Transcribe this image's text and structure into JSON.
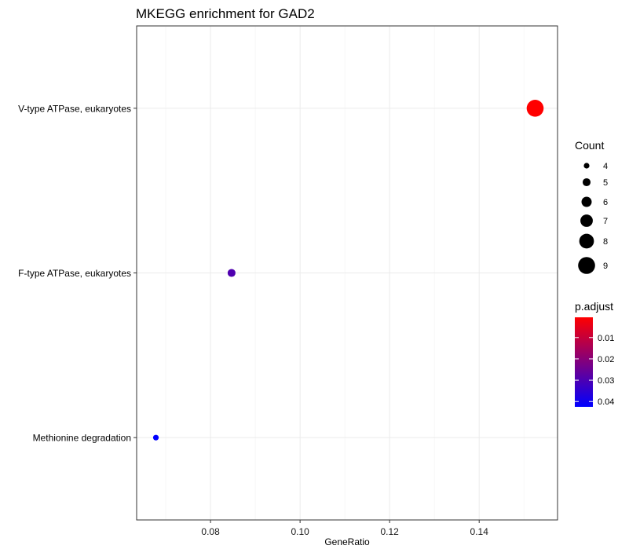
{
  "chart_data": {
    "type": "scatter",
    "title": "MKEGG enrichment for GAD2",
    "xlabel": "GeneRatio",
    "ylabel": "",
    "xlim": [
      0.0635,
      0.1575
    ],
    "x_ticks": [
      0.08,
      0.1,
      0.12,
      0.14
    ],
    "x_tick_labels": [
      "0.08",
      "0.10",
      "0.12",
      "0.14"
    ],
    "categories": [
      "V-type ATPase, eukaryotes",
      "F-type ATPase, eukaryotes",
      "Methionine degradation"
    ],
    "points": [
      {
        "term": "V-type ATPase, eukaryotes",
        "gene_ratio": 0.1525,
        "count": 9,
        "p_adjust": 0.0005
      },
      {
        "term": "F-type ATPase, eukaryotes",
        "gene_ratio": 0.0847,
        "count": 5,
        "p_adjust": 0.0295
      },
      {
        "term": "Methionine degradation",
        "gene_ratio": 0.0678,
        "count": 4,
        "p_adjust": 0.0425
      }
    ],
    "size_legend": {
      "title": "Count",
      "entries": [
        4,
        5,
        6,
        7,
        8,
        9
      ]
    },
    "color_legend": {
      "title": "p.adjust",
      "low_color": "#ff0000",
      "high_color": "#0000ff",
      "range": [
        0.0005,
        0.0425
      ],
      "ticks": [
        0.01,
        0.02,
        0.03,
        0.04
      ],
      "tick_labels": [
        "0.01",
        "0.02",
        "0.03",
        "0.04"
      ]
    },
    "grid": true,
    "legend_position": "right"
  }
}
